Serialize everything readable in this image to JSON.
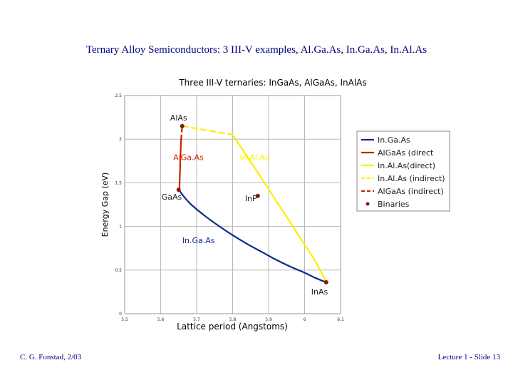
{
  "slide": {
    "title": "Ternary Alloy Semiconductors: 3 III-V examples, Al.Ga.As, In.Ga.As, In.Al.As",
    "footer_left": "C. G. Fonstad, 2/03",
    "footer_right": "Lecture 1 - Slide 13"
  },
  "chart_data": {
    "type": "line",
    "title": "Three III-V ternaries: InGaAs, AlGaAs, InAlAs",
    "xlabel": "Lattice period (Angstoms)",
    "ylabel": "Energy Gap (eV)",
    "xlim": [
      5.5,
      6.1
    ],
    "ylim": [
      0,
      2.5
    ],
    "x_ticks": [
      5.5,
      5.6,
      5.7,
      5.8,
      5.9,
      6,
      6.1
    ],
    "x_tick_labels": [
      "5.5",
      "5.6",
      "5.7",
      "5.8",
      "5.9",
      "6",
      "6.1"
    ],
    "y_ticks": [
      0,
      0.5,
      1,
      1.5,
      2,
      2.5
    ],
    "y_tick_labels": [
      "0",
      "0.5",
      "1",
      "1.5",
      "2",
      "2.5"
    ],
    "grid": true,
    "legend_position": "right",
    "series": [
      {
        "name": "In.Ga.As",
        "color": "#0a2a8a",
        "dash": "solid",
        "x": [
          5.65,
          5.68,
          5.72,
          5.76,
          5.8,
          5.84,
          5.88,
          5.92,
          5.96,
          6.0,
          6.03,
          6.06
        ],
        "y": [
          1.42,
          1.27,
          1.13,
          1.01,
          0.9,
          0.8,
          0.71,
          0.62,
          0.54,
          0.47,
          0.41,
          0.36
        ]
      },
      {
        "name": "AlGaAs (direct",
        "color": "#cc2200",
        "dash": "solid",
        "x": [
          5.652,
          5.6535,
          5.6545,
          5.656,
          5.6565
        ],
        "y": [
          1.42,
          1.6,
          1.75,
          1.92,
          1.98
        ]
      },
      {
        "name": "In.Al.As(direct)",
        "color": "#ffee00",
        "dash": "solid",
        "x": [
          5.8,
          5.86,
          5.92,
          5.98,
          6.03,
          6.06
        ],
        "y": [
          2.05,
          1.68,
          1.3,
          0.92,
          0.6,
          0.36
        ]
      },
      {
        "name": "In.Al.As (indirect)",
        "color": "#ffee00",
        "dash": "dashed",
        "x": [
          5.66,
          5.73,
          5.8
        ],
        "y": [
          2.15,
          2.1,
          2.05
        ]
      },
      {
        "name": "AlGaAs (indirect)",
        "color": "#cc2200",
        "dash": "dashed",
        "x": [
          5.6565,
          5.66
        ],
        "y": [
          1.98,
          2.15
        ]
      }
    ],
    "binaries": [
      {
        "name": "AlAs",
        "x": 5.66,
        "y": 2.15
      },
      {
        "name": "GaAs",
        "x": 5.65,
        "y": 1.42
      },
      {
        "name": "InP",
        "x": 5.87,
        "y": 1.35
      },
      {
        "name": "InAs",
        "x": 6.06,
        "y": 0.36
      }
    ],
    "binaries_legend": "Binaries",
    "binary_color": "#8b1a0a",
    "annotations": [
      {
        "text": "AlGa.As",
        "x": 5.635,
        "y": 1.76,
        "color": "#cc2200"
      },
      {
        "text": "In.Al.As",
        "x": 5.82,
        "y": 1.76,
        "color": "#ffee00"
      },
      {
        "text": "In.Ga.As",
        "x": 5.66,
        "y": 0.81,
        "color": "#0a2a8a"
      }
    ]
  }
}
